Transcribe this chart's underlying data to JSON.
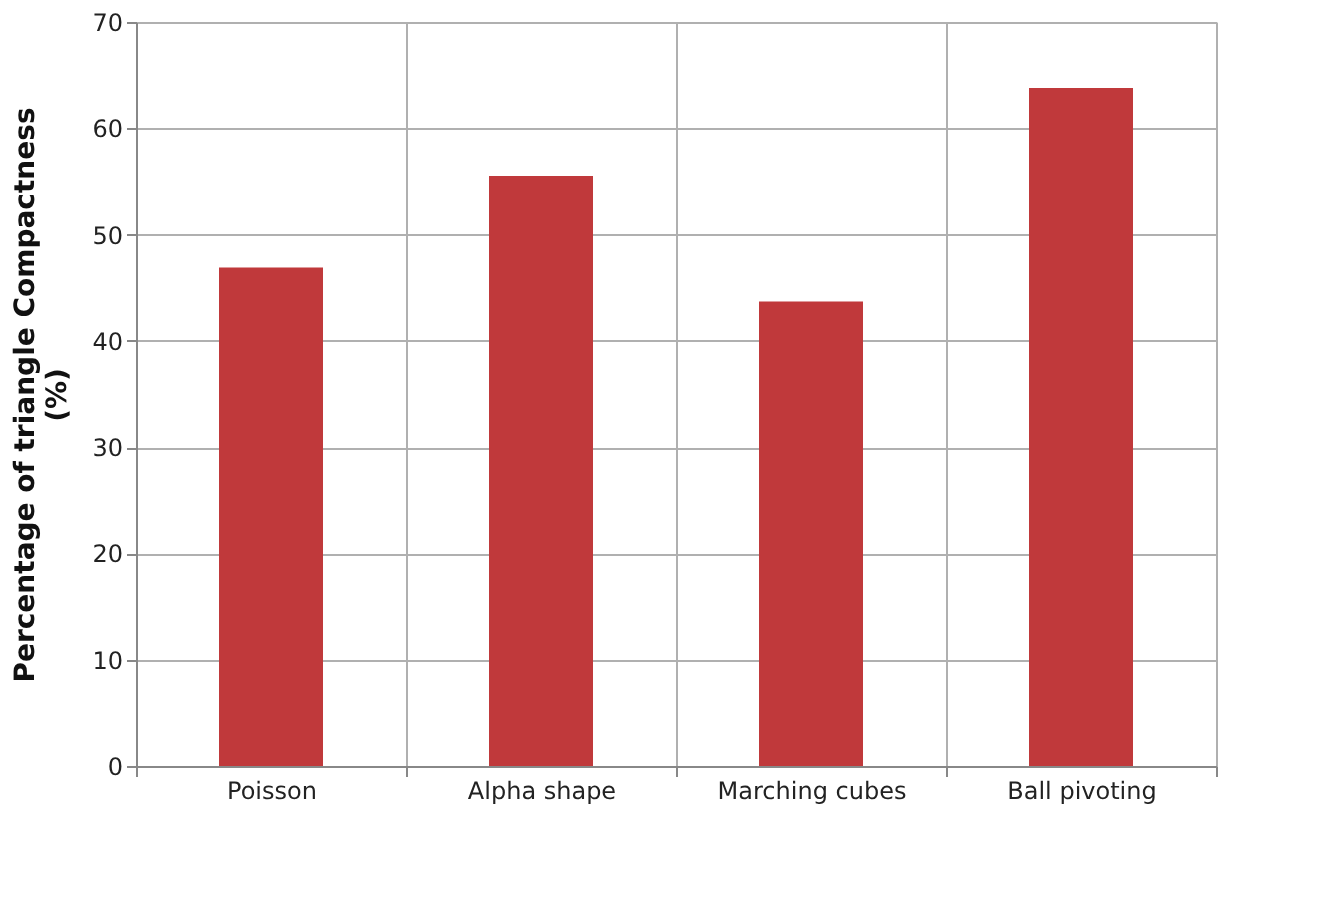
{
  "chart_data": {
    "type": "bar",
    "ylabel": "Percentage of triangle Compactness (%)",
    "categories": [
      "Poisson",
      "Alpha shape",
      "Marching cubes",
      "Ball pivoting"
    ],
    "values": [
      46.9,
      55.5,
      43.7,
      63.8
    ],
    "color": "#c0393b",
    "ylim": [
      0,
      70
    ],
    "yticks": [
      0,
      10,
      20,
      30,
      40,
      50,
      60,
      70
    ],
    "grid": true
  }
}
